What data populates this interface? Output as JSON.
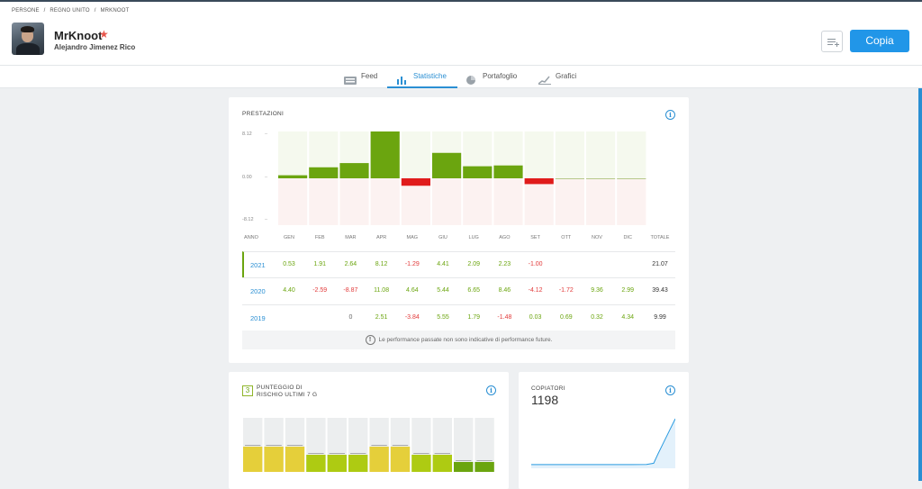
{
  "breadcrumb": [
    "PERSONE",
    "/",
    "REGNO UNITO",
    "/",
    "MRKNOOT"
  ],
  "profile": {
    "username": "MrKnoot",
    "full_name": "Alejandro Jimenez Rico"
  },
  "header": {
    "copy_label": "Copia"
  },
  "tabs": [
    {
      "label": "Feed",
      "icon": "feed-icon"
    },
    {
      "label": "Statistiche",
      "icon": "bar-chart-icon"
    },
    {
      "label": "Portafoglio",
      "icon": "pie-chart-icon"
    },
    {
      "label": "Grafici",
      "icon": "line-chart-icon"
    }
  ],
  "performance": {
    "title": "PRESTAZIONI",
    "axis": {
      "top": "8.12",
      "mid": "0.00",
      "bottom": "-8.12"
    },
    "months_header": [
      "ANNO",
      "GEN",
      "FEB",
      "MAR",
      "APR",
      "MAG",
      "GIU",
      "LUG",
      "AGO",
      "SET",
      "OTT",
      "NOV",
      "DIC",
      "TOTALE"
    ],
    "rows": [
      {
        "year": "2021",
        "values": [
          "0.53",
          "1.91",
          "2.64",
          "8.12",
          "-1.29",
          "4.41",
          "2.09",
          "2.23",
          "-1.00",
          "",
          "",
          ""
        ],
        "total": "21.07"
      },
      {
        "year": "2020",
        "values": [
          "4.40",
          "-2.59",
          "-8.87",
          "11.08",
          "4.64",
          "5.44",
          "6.65",
          "8.46",
          "-4.12",
          "-1.72",
          "9.36",
          "2.99"
        ],
        "total": "39.43"
      },
      {
        "year": "2019",
        "values": [
          "",
          "",
          "0",
          "2.51",
          "-3.84",
          "5.55",
          "1.79",
          "-1.48",
          "0.03",
          "0.69",
          "0.32",
          "4.34"
        ],
        "total": "9.99"
      }
    ],
    "disclaimer": "Le performance passate non sono indicative di performance future."
  },
  "chart_data": [
    {
      "type": "bar",
      "title": "PRESTAZIONI",
      "categories": [
        "GEN",
        "FEB",
        "MAR",
        "APR",
        "MAG",
        "GIU",
        "LUG",
        "AGO",
        "SET",
        "OTT",
        "NOV",
        "DIC"
      ],
      "values": [
        0.53,
        1.91,
        2.64,
        8.12,
        -1.29,
        4.41,
        2.09,
        2.23,
        -1.0,
        0,
        0,
        0
      ],
      "ylim": [
        -8.12,
        8.12
      ],
      "colors": {
        "positive": "#6ba50f",
        "negative": "#e01b1b"
      }
    },
    {
      "type": "bar",
      "title": "PUNTEGGIO DI RISCHIO ULTIMI 7 G",
      "categories": [
        "1",
        "2",
        "3",
        "4",
        "5",
        "6",
        "7",
        "8",
        "9",
        "10",
        "11",
        "12"
      ],
      "values": [
        3,
        3,
        3,
        2,
        2,
        2,
        3,
        3,
        2,
        2,
        1,
        1
      ],
      "ylim": [
        0,
        7
      ],
      "colors": {
        "3": "#e5cf3a",
        "2": "#aecb12",
        "1": "#6ba50f"
      }
    },
    {
      "type": "area",
      "title": "COPIATORI",
      "x": [
        0,
        10,
        20,
        30,
        40,
        50,
        60,
        65,
        70,
        80,
        85,
        88,
        92,
        96,
        100
      ],
      "values": [
        25,
        25,
        25,
        25,
        25,
        25,
        25,
        26,
        25,
        28,
        60,
        300,
        600,
        900,
        1198
      ],
      "ylim": [
        0,
        1198
      ]
    }
  ],
  "risk": {
    "score": "3",
    "title_line1": "PUNTEGGIO DI",
    "title_line2": "RISCHIO ULTIMI 7 G"
  },
  "copiers": {
    "title": "COPIATORI",
    "count": "1198"
  }
}
